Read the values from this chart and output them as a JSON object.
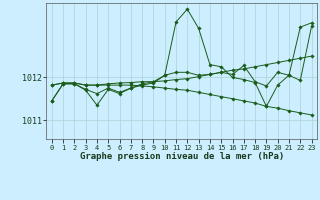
{
  "xlabel": "Graphe pression niveau de la mer (hPa)",
  "bg_color": "#cceeff",
  "line_color": "#1a5c1a",
  "grid_color": "#aad4d4",
  "xlim": [
    -0.5,
    23.5
  ],
  "ylim": [
    1010.55,
    1013.75
  ],
  "yticks": [
    1011,
    1012
  ],
  "xticks": [
    0,
    1,
    2,
    3,
    4,
    5,
    6,
    7,
    8,
    9,
    10,
    11,
    12,
    13,
    14,
    15,
    16,
    17,
    18,
    19,
    20,
    21,
    22,
    23
  ],
  "series": {
    "line1": [
      1011.45,
      1011.85,
      1011.85,
      1011.7,
      1011.35,
      1011.72,
      1011.62,
      1011.75,
      1011.82,
      1011.87,
      1012.05,
      1013.3,
      1013.6,
      1013.15,
      1012.3,
      1012.25,
      1012.0,
      1011.95,
      1011.88,
      1011.32,
      1011.82,
      1012.05,
      1011.93,
      1013.2
    ],
    "line2": [
      1011.82,
      1011.87,
      1011.87,
      1011.82,
      1011.82,
      1011.85,
      1011.87,
      1011.88,
      1011.9,
      1011.9,
      1011.92,
      1011.95,
      1011.97,
      1012.02,
      1012.07,
      1012.12,
      1012.17,
      1012.2,
      1012.25,
      1012.3,
      1012.35,
      1012.4,
      1012.45,
      1012.5
    ],
    "line3": [
      1011.82,
      1011.87,
      1011.87,
      1011.82,
      1011.82,
      1011.82,
      1011.82,
      1011.82,
      1011.8,
      1011.78,
      1011.75,
      1011.72,
      1011.7,
      1011.65,
      1011.6,
      1011.55,
      1011.5,
      1011.45,
      1011.4,
      1011.32,
      1011.28,
      1011.22,
      1011.17,
      1011.12
    ],
    "line4": [
      1011.45,
      1011.85,
      1011.85,
      1011.72,
      1011.62,
      1011.75,
      1011.65,
      1011.75,
      1011.85,
      1011.9,
      1012.05,
      1012.12,
      1012.12,
      1012.05,
      1012.07,
      1012.12,
      1012.07,
      1012.28,
      1011.9,
      1011.8,
      1012.12,
      1012.05,
      1013.18,
      1013.28
    ]
  }
}
